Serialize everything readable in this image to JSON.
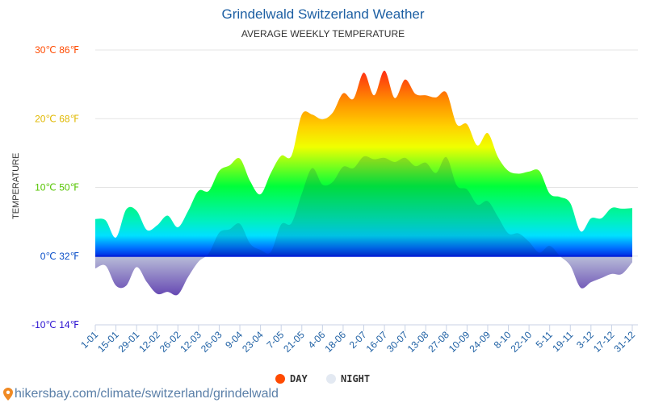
{
  "chart_data": {
    "type": "area",
    "title": "Grindelwald Switzerland Weather",
    "subtitle": "AVERAGE WEEKLY TEMPERATURE",
    "ylabel": "TEMPERATURE",
    "ylim": [
      -10,
      30
    ],
    "y_ticks": [
      {
        "value": 30,
        "label": "30℃ 86℉",
        "color": "#ff4a00"
      },
      {
        "value": 20,
        "label": "20℃ 68℉",
        "color": "#e0b800"
      },
      {
        "value": 10,
        "label": "10℃ 50℉",
        "color": "#55c400"
      },
      {
        "value": 0,
        "label": "0℃ 32℉",
        "color": "#0a4fc8"
      },
      {
        "value": -10,
        "label": "-10℃ 14℉",
        "color": "#2a10d0"
      }
    ],
    "x_tick_labels": [
      "1-01",
      "15-01",
      "29-01",
      "12-02",
      "26-02",
      "12-03",
      "26-03",
      "9-04",
      "23-04",
      "7-05",
      "21-05",
      "4-06",
      "18-06",
      "2-07",
      "16-07",
      "30-07",
      "13-08",
      "27-08",
      "10-09",
      "24-09",
      "8-10",
      "22-10",
      "5-11",
      "19-11",
      "3-12",
      "17-12",
      "31-12"
    ],
    "grid": true,
    "legend_position": "bottom",
    "series": [
      {
        "name": "DAY",
        "color": "#ff4a00",
        "values": [
          5.4,
          5.2,
          2.7,
          6.8,
          6.6,
          3.8,
          4.5,
          5.9,
          4.2,
          6.6,
          9.5,
          9.5,
          12.4,
          13.2,
          14.2,
          10.9,
          9.0,
          12.1,
          14.6,
          14.6,
          20.6,
          20.6,
          19.9,
          20.9,
          23.7,
          22.9,
          26.7,
          23.4,
          27.0,
          23.0,
          25.7,
          23.6,
          23.4,
          23.1,
          23.8,
          19.2,
          19.2,
          16.1,
          17.9,
          14.4,
          12.4,
          12.0,
          12.3,
          12.4,
          9.1,
          8.6,
          7.7,
          3.6,
          5.5,
          5.5,
          7.0,
          6.9,
          7.0
        ]
      },
      {
        "name": "NIGHT",
        "color": "#e3e9f2",
        "values": [
          -1.8,
          -1.4,
          -4.3,
          -4.3,
          -1.6,
          -3.8,
          -5.5,
          -5.2,
          -5.6,
          -3.0,
          -0.8,
          0.4,
          3.4,
          3.9,
          4.7,
          1.8,
          0.9,
          0.6,
          4.6,
          4.8,
          9.1,
          12.8,
          10.4,
          10.8,
          13.0,
          12.8,
          14.5,
          14.1,
          14.3,
          13.7,
          14.3,
          13.1,
          13.6,
          12.1,
          14.4,
          10.3,
          9.7,
          7.5,
          8.0,
          5.7,
          3.3,
          3.3,
          2.1,
          0.5,
          1.5,
          0.0,
          -1.4,
          -4.6,
          -3.8,
          -3.2,
          -2.6,
          -2.6,
          -0.9
        ]
      }
    ]
  },
  "legend": {
    "day": "DAY",
    "night": "NIGHT"
  },
  "footer": {
    "text": "hikersbay.com/climate/switzerland/grindelwald",
    "icon": "map-pin-icon"
  }
}
